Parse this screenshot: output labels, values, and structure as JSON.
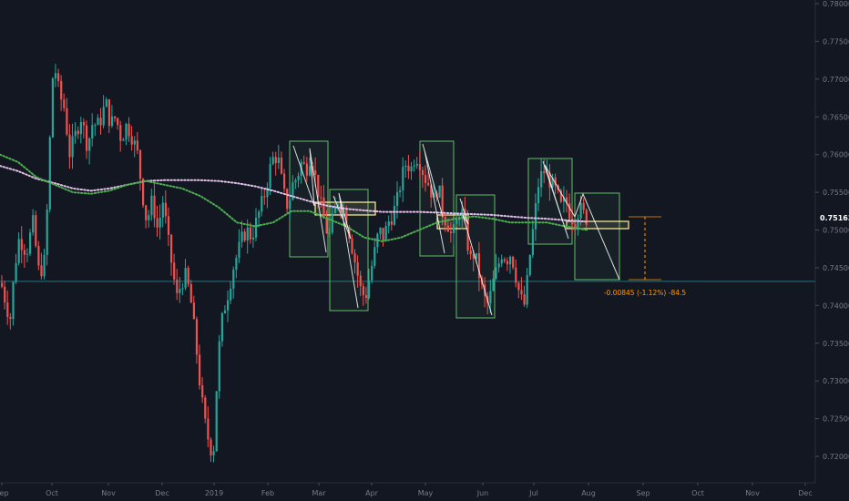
{
  "chart_data": {
    "type": "candlestick",
    "title": "",
    "ylim": [
      0.718,
      0.78
    ],
    "y_ticks": [
      "0.78000",
      "0.77500",
      "0.77000",
      "0.76500",
      "0.76000",
      "0.75500",
      "0.75000",
      "0.74500",
      "0.74000",
      "0.73500",
      "0.73000",
      "0.72500",
      "0.72000"
    ],
    "y_tick_values": [
      0.78,
      0.775,
      0.77,
      0.765,
      0.76,
      0.755,
      0.75,
      0.745,
      0.74,
      0.735,
      0.73,
      0.725,
      0.72
    ],
    "x_ticks": [
      "Sep",
      "Oct",
      "Nov",
      "Dec",
      "2019",
      "Feb",
      "Mar",
      "Apr",
      "May",
      "Jun",
      "Jul",
      "Aug",
      "Sep",
      "Oct",
      "Nov",
      "Dec"
    ],
    "last_price": {
      "label": "0.75163",
      "value": 0.75163
    },
    "horizontal_line": {
      "value": 0.7432
    },
    "measure_label": "-0.00845 (-1.12%) -84.5",
    "colors": {
      "up": "#26a69a",
      "down": "#ef5350",
      "ma_fast": "#4caf50",
      "ma_slow": "#e1bee7",
      "rect_green": "#66bb6a",
      "rect_yellow": "#fff59d",
      "measure": "#ff9800",
      "background": "#131722"
    },
    "price_path": [
      [
        0,
        0.743
      ],
      [
        10,
        0.738
      ],
      [
        15,
        0.745
      ],
      [
        20,
        0.749
      ],
      [
        28,
        0.747
      ],
      [
        35,
        0.751
      ],
      [
        42,
        0.744
      ],
      [
        48,
        0.746
      ],
      [
        52,
        0.756
      ],
      [
        56,
        0.77
      ],
      [
        60,
        0.771
      ],
      [
        64,
        0.768
      ],
      [
        70,
        0.766
      ],
      [
        75,
        0.76
      ],
      [
        80,
        0.762
      ],
      [
        88,
        0.765
      ],
      [
        95,
        0.761
      ],
      [
        100,
        0.764
      ],
      [
        108,
        0.764
      ],
      [
        115,
        0.767
      ],
      [
        120,
        0.764
      ],
      [
        126,
        0.765
      ],
      [
        132,
        0.762
      ],
      [
        138,
        0.764
      ],
      [
        145,
        0.762
      ],
      [
        150,
        0.76
      ],
      [
        155,
        0.755
      ],
      [
        160,
        0.751
      ],
      [
        166,
        0.754
      ],
      [
        172,
        0.75
      ],
      [
        178,
        0.754
      ],
      [
        183,
        0.749
      ],
      [
        188,
        0.745
      ],
      [
        193,
        0.741
      ],
      [
        198,
        0.743
      ],
      [
        203,
        0.744
      ],
      [
        208,
        0.741
      ],
      [
        213,
        0.736
      ],
      [
        218,
        0.73
      ],
      [
        223,
        0.725
      ],
      [
        228,
        0.722
      ],
      [
        233,
        0.72
      ],
      [
        237,
        0.73
      ],
      [
        241,
        0.737
      ],
      [
        246,
        0.74
      ],
      [
        250,
        0.742
      ],
      [
        255,
        0.745
      ],
      [
        260,
        0.747
      ],
      [
        265,
        0.749
      ],
      [
        270,
        0.75
      ],
      [
        275,
        0.749
      ],
      [
        280,
        0.751
      ],
      [
        285,
        0.753
      ],
      [
        290,
        0.755
      ],
      [
        295,
        0.758
      ],
      [
        300,
        0.76
      ],
      [
        305,
        0.759
      ],
      [
        310,
        0.755
      ],
      [
        315,
        0.753
      ],
      [
        320,
        0.756
      ],
      [
        325,
        0.757
      ],
      [
        330,
        0.759
      ],
      [
        335,
        0.758
      ],
      [
        340,
        0.76
      ],
      [
        345,
        0.757
      ],
      [
        350,
        0.754
      ],
      [
        355,
        0.751
      ],
      [
        360,
        0.749
      ],
      [
        365,
        0.752
      ],
      [
        370,
        0.754
      ],
      [
        375,
        0.753
      ],
      [
        380,
        0.751
      ],
      [
        385,
        0.748
      ],
      [
        390,
        0.745
      ],
      [
        395,
        0.742
      ],
      [
        400,
        0.741
      ],
      [
        405,
        0.744
      ],
      [
        410,
        0.747
      ],
      [
        415,
        0.75
      ],
      [
        420,
        0.749
      ],
      [
        425,
        0.751
      ],
      [
        430,
        0.752
      ],
      [
        435,
        0.754
      ],
      [
        440,
        0.757
      ],
      [
        445,
        0.759
      ],
      [
        450,
        0.758
      ],
      [
        455,
        0.76
      ],
      [
        460,
        0.759
      ],
      [
        465,
        0.757
      ],
      [
        470,
        0.756
      ],
      [
        475,
        0.754
      ],
      [
        480,
        0.756
      ],
      [
        485,
        0.752
      ],
      [
        490,
        0.751
      ],
      [
        495,
        0.749
      ],
      [
        500,
        0.751
      ],
      [
        505,
        0.753
      ],
      [
        510,
        0.75
      ],
      [
        515,
        0.746
      ],
      [
        520,
        0.747
      ],
      [
        525,
        0.744
      ],
      [
        530,
        0.741
      ],
      [
        535,
        0.74
      ],
      [
        540,
        0.743
      ],
      [
        545,
        0.745
      ],
      [
        550,
        0.747
      ],
      [
        555,
        0.746
      ],
      [
        560,
        0.747
      ],
      [
        565,
        0.744
      ],
      [
        570,
        0.741
      ],
      [
        575,
        0.74
      ],
      [
        580,
        0.746
      ],
      [
        585,
        0.751
      ],
      [
        590,
        0.756
      ],
      [
        595,
        0.758
      ],
      [
        600,
        0.757
      ],
      [
        605,
        0.756
      ],
      [
        610,
        0.755
      ],
      [
        615,
        0.753
      ],
      [
        620,
        0.754
      ],
      [
        625,
        0.752
      ],
      [
        630,
        0.751
      ],
      [
        635,
        0.753
      ],
      [
        640,
        0.752
      ],
      [
        645,
        0.751
      ]
    ],
    "ma_fast": [
      [
        0,
        0.76
      ],
      [
        20,
        0.759
      ],
      [
        40,
        0.757
      ],
      [
        60,
        0.756
      ],
      [
        80,
        0.755
      ],
      [
        100,
        0.7548
      ],
      [
        120,
        0.7552
      ],
      [
        140,
        0.756
      ],
      [
        160,
        0.7565
      ],
      [
        180,
        0.756
      ],
      [
        200,
        0.7555
      ],
      [
        220,
        0.7545
      ],
      [
        240,
        0.753
      ],
      [
        260,
        0.751
      ],
      [
        280,
        0.7505
      ],
      [
        300,
        0.751
      ],
      [
        320,
        0.7525
      ],
      [
        340,
        0.7525
      ],
      [
        360,
        0.7515
      ],
      [
        380,
        0.7505
      ],
      [
        400,
        0.749
      ],
      [
        420,
        0.7485
      ],
      [
        440,
        0.749
      ],
      [
        460,
        0.75
      ],
      [
        480,
        0.751
      ],
      [
        500,
        0.7515
      ],
      [
        520,
        0.7518
      ],
      [
        540,
        0.7515
      ],
      [
        560,
        0.751
      ],
      [
        580,
        0.751
      ],
      [
        600,
        0.751
      ],
      [
        620,
        0.7505
      ],
      [
        645,
        0.75
      ]
    ],
    "ma_slow": [
      [
        0,
        0.7585
      ],
      [
        20,
        0.7578
      ],
      [
        40,
        0.7568
      ],
      [
        60,
        0.7562
      ],
      [
        80,
        0.7555
      ],
      [
        100,
        0.7552
      ],
      [
        120,
        0.7555
      ],
      [
        140,
        0.756
      ],
      [
        160,
        0.7565
      ],
      [
        180,
        0.7566
      ],
      [
        200,
        0.7566
      ],
      [
        220,
        0.7566
      ],
      [
        240,
        0.7565
      ],
      [
        260,
        0.7562
      ],
      [
        280,
        0.7558
      ],
      [
        300,
        0.7552
      ],
      [
        320,
        0.7545
      ],
      [
        340,
        0.7538
      ],
      [
        360,
        0.7532
      ],
      [
        380,
        0.7528
      ],
      [
        400,
        0.7526
      ],
      [
        420,
        0.7524
      ],
      [
        440,
        0.7524
      ],
      [
        460,
        0.7524
      ],
      [
        480,
        0.7523
      ],
      [
        500,
        0.7522
      ],
      [
        520,
        0.7521
      ],
      [
        540,
        0.752
      ],
      [
        560,
        0.7518
      ],
      [
        580,
        0.7516
      ],
      [
        600,
        0.7515
      ],
      [
        620,
        0.7513
      ],
      [
        645,
        0.7511
      ]
    ]
  }
}
